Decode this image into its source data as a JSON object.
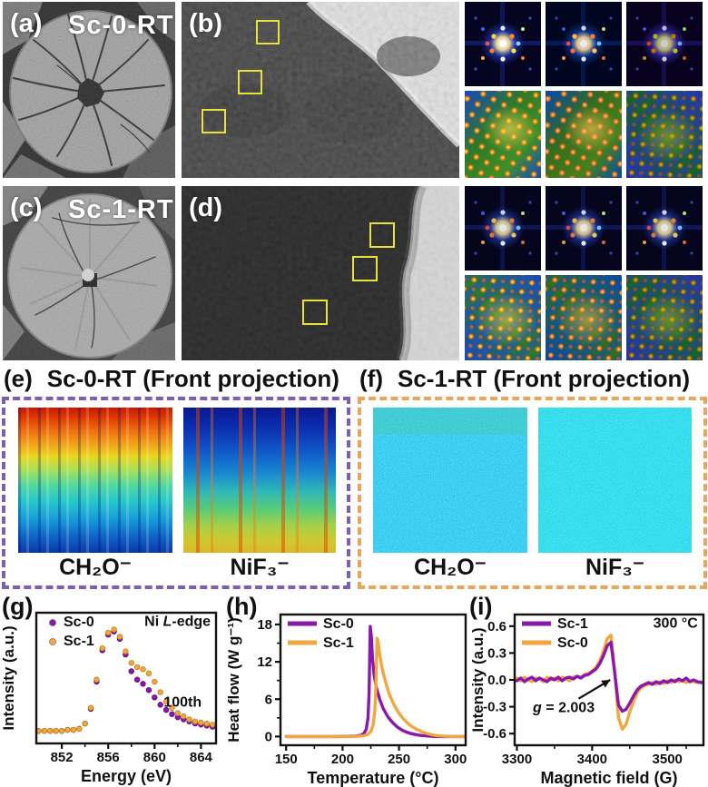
{
  "figure": {
    "a": {
      "label": "(a)",
      "title": "Sc-0-RT"
    },
    "b": {
      "label": "(b)"
    },
    "c": {
      "label": "(c)",
      "title": "Sc-1-RT"
    },
    "d": {
      "label": "(d)"
    },
    "e": {
      "label": "(e)",
      "title": "Sc-0-RT (Front projection)",
      "captions": [
        "CH₂O⁻",
        "NiF₃⁻"
      ],
      "accent": "#7a5fb5"
    },
    "f": {
      "label": "(f)",
      "title": "Sc-1-RT (Front projection)",
      "captions": [
        "CH₂O⁻",
        "NiF₃⁻"
      ],
      "accent": "#eaa559"
    },
    "g": {
      "label": "(g)"
    },
    "h": {
      "label": "(h)"
    },
    "i": {
      "label": "(i)"
    }
  },
  "colors": {
    "purple": "#8a18ac",
    "orange": "#f4a63e",
    "purple_edge": "#5c0d78",
    "orange_edge": "#c07f1a"
  },
  "chart_data": [
    {
      "id": "g",
      "type": "scatter",
      "xlabel": "Energy (eV)",
      "ylabel": "Intensity (a.u.)",
      "xlim": [
        849.8,
        865.3
      ],
      "ylim": [
        -0.07,
        1.18
      ],
      "xticks": [
        {
          "v": 852,
          "t": "852"
        },
        {
          "v": 856,
          "t": "856"
        },
        {
          "v": 860,
          "t": "860"
        },
        {
          "v": 864,
          "t": "864"
        }
      ],
      "yticks": [],
      "xminor": [
        854,
        858,
        862
      ],
      "yminor": [],
      "grid": false,
      "legend_position": "top-left",
      "legend": [
        {
          "label": "Sc-0",
          "color": "#8a18ac",
          "marker": "dot"
        },
        {
          "label": "Sc-1",
          "color": "#f4a63e",
          "marker": "dot"
        }
      ],
      "annotations": [
        {
          "fx": 0.97,
          "fy": 0.1,
          "anchor": "end",
          "parts": [
            [
              "Ni ",
              false
            ],
            [
              "L",
              true
            ],
            [
              "-edge",
              false
            ]
          ]
        },
        {
          "fx": 0.92,
          "fy": 0.72,
          "anchor": "end",
          "parts": [
            [
              "100th",
              false
            ]
          ]
        }
      ],
      "x": [
        850,
        850.5,
        851,
        851.5,
        852,
        852.5,
        853,
        853.5,
        854,
        854.5,
        855,
        855.5,
        856,
        856.5,
        857,
        857.5,
        858,
        858.5,
        859,
        859.5,
        860,
        860.5,
        861,
        861.5,
        862,
        862.5,
        863,
        863.5,
        864,
        864.5,
        865
      ],
      "series": [
        {
          "name": "Sc-0",
          "color": "#8a18ac",
          "edge": "#5c0d78",
          "values": [
            0.05,
            0.05,
            0.05,
            0.05,
            0.05,
            0.06,
            0.06,
            0.07,
            0.12,
            0.26,
            0.52,
            0.82,
            0.97,
            1.0,
            0.93,
            0.78,
            0.62,
            0.54,
            0.5,
            0.44,
            0.37,
            0.3,
            0.25,
            0.21,
            0.18,
            0.16,
            0.14,
            0.12,
            0.11,
            0.1,
            0.09
          ]
        },
        {
          "name": "Sc-1",
          "color": "#f4a63e",
          "edge": "#c07f1a",
          "values": [
            0.05,
            0.05,
            0.05,
            0.05,
            0.05,
            0.06,
            0.06,
            0.07,
            0.12,
            0.27,
            0.54,
            0.84,
            0.99,
            1.02,
            0.95,
            0.81,
            0.7,
            0.66,
            0.64,
            0.6,
            0.52,
            0.42,
            0.33,
            0.27,
            0.22,
            0.19,
            0.16,
            0.14,
            0.13,
            0.12,
            0.11
          ]
        }
      ]
    },
    {
      "id": "h",
      "type": "line",
      "xlabel": "Temperature (°C)",
      "ylabel": "Heat flow (W g⁻¹)",
      "xlim": [
        145,
        309
      ],
      "ylim": [
        -1.4,
        19.6
      ],
      "xticks": [
        {
          "v": 150,
          "t": "150"
        },
        {
          "v": 200,
          "t": "200"
        },
        {
          "v": 250,
          "t": "250"
        },
        {
          "v": 300,
          "t": "300"
        }
      ],
      "yticks": [
        {
          "v": 0,
          "t": "0"
        },
        {
          "v": 6,
          "t": "6"
        },
        {
          "v": 12,
          "t": "12"
        },
        {
          "v": 18,
          "t": "18"
        }
      ],
      "xminor": [
        175,
        225,
        275
      ],
      "yminor": [
        3,
        9,
        15
      ],
      "grid": false,
      "legend_position": "top-left",
      "legend": [
        {
          "label": "Sc-0",
          "color": "#8a18ac",
          "marker": "line"
        },
        {
          "label": "Sc-1",
          "color": "#f4a63e",
          "marker": "line"
        }
      ],
      "annotations": [],
      "series": [
        {
          "name": "Sc-0",
          "color": "#8a18ac",
          "points": [
            [
              150,
              0
            ],
            [
              195,
              0
            ],
            [
              205,
              0.03
            ],
            [
              212,
              0.08
            ],
            [
              216,
              0.2
            ],
            [
              219,
              0.5
            ],
            [
              221,
              1.2
            ],
            [
              222.5,
              3
            ],
            [
              223.5,
              7
            ],
            [
              224.5,
              17.7
            ],
            [
              225.5,
              16
            ],
            [
              226.5,
              12.5
            ],
            [
              228,
              9.8
            ],
            [
              230,
              7.8
            ],
            [
              233,
              5.9
            ],
            [
              236,
              4.5
            ],
            [
              240,
              3.2
            ],
            [
              244,
              2.3
            ],
            [
              248,
              1.6
            ],
            [
              252,
              1.1
            ],
            [
              256,
              0.75
            ],
            [
              260,
              0.5
            ],
            [
              265,
              0.3
            ],
            [
              270,
              0.16
            ],
            [
              275,
              0.08
            ],
            [
              280,
              0.03
            ],
            [
              288,
              0
            ],
            [
              308,
              0
            ]
          ]
        },
        {
          "name": "Sc-1",
          "color": "#f4a63e",
          "points": [
            [
              150,
              0
            ],
            [
              205,
              0
            ],
            [
              213,
              0.04
            ],
            [
              218,
              0.1
            ],
            [
              222,
              0.3
            ],
            [
              225,
              0.8
            ],
            [
              227,
              1.8
            ],
            [
              228.5,
              4
            ],
            [
              229.5,
              8
            ],
            [
              230.5,
              15.8
            ],
            [
              231.5,
              15.2
            ],
            [
              233,
              13
            ],
            [
              235,
              11
            ],
            [
              238,
              8.8
            ],
            [
              241,
              7
            ],
            [
              245,
              5.3
            ],
            [
              249,
              4
            ],
            [
              253,
              3
            ],
            [
              257,
              2.25
            ],
            [
              261,
              1.65
            ],
            [
              266,
              1.1
            ],
            [
              271,
              0.7
            ],
            [
              276,
              0.42
            ],
            [
              281,
              0.22
            ],
            [
              286,
              0.1
            ],
            [
              292,
              0.03
            ],
            [
              300,
              0
            ],
            [
              308,
              0
            ]
          ]
        }
      ]
    },
    {
      "id": "i",
      "type": "line",
      "xlabel": "Magnetic field (G)",
      "ylabel": "Intensity (a.u.)",
      "xlim": [
        3297,
        3548
      ],
      "ylim": [
        -0.73,
        0.73
      ],
      "xticks": [
        {
          "v": 3300,
          "t": "3300"
        },
        {
          "v": 3400,
          "t": "3400"
        },
        {
          "v": 3500,
          "t": "3500"
        }
      ],
      "yticks": [
        {
          "v": -0.6,
          "t": "-0.6"
        },
        {
          "v": -0.3,
          "t": "-0.3"
        },
        {
          "v": 0,
          "t": "0.0"
        },
        {
          "v": 0.3,
          "t": "0.3"
        },
        {
          "v": 0.6,
          "t": "0.6"
        }
      ],
      "xminor": [
        3350,
        3450,
        3525
      ],
      "yminor": [],
      "grid": false,
      "legend_position": "top-left",
      "legend": [
        {
          "label": "Sc-1",
          "color": "#8a18ac",
          "marker": "line"
        },
        {
          "label": "Sc-0",
          "color": "#f4a63e",
          "marker": "line"
        }
      ],
      "annotations": [
        {
          "fx": 0.97,
          "fy": 0.1,
          "anchor": "end",
          "parts": [
            [
              "300 °C",
              false
            ]
          ]
        },
        {
          "fx": 0.26,
          "fy": 0.745,
          "anchor": "middle",
          "parts": [
            [
              "g",
              true
            ],
            [
              " = 2.003",
              false
            ]
          ]
        }
      ],
      "arrow": {
        "from": [
          3382,
          -0.21
        ],
        "to": [
          3424,
          0.0
        ]
      },
      "x_start": 3300,
      "x_step": 5,
      "series": [
        {
          "name": "Sc-0",
          "color": "#f4a63e",
          "values": [
            0.02,
            -0.01,
            0.03,
            0.0,
            -0.02,
            0.02,
            0.01,
            -0.02,
            0.03,
            0.0,
            0.02,
            -0.01,
            0.03,
            0.01,
            -0.01,
            0.03,
            0.04,
            0.03,
            0.06,
            0.07,
            0.1,
            0.14,
            0.21,
            0.32,
            0.46,
            0.5,
            0.1,
            -0.42,
            -0.55,
            -0.5,
            -0.36,
            -0.24,
            -0.14,
            -0.09,
            -0.06,
            -0.05,
            -0.03,
            -0.05,
            -0.02,
            -0.04,
            -0.01,
            -0.03,
            0.0,
            -0.02,
            -0.01,
            -0.03,
            -0.01,
            -0.02,
            -0.03,
            -0.02
          ]
        },
        {
          "name": "Sc-1",
          "color": "#8a18ac",
          "values": [
            -0.01,
            0.02,
            -0.02,
            0.01,
            0.03,
            -0.01,
            0.02,
            0.0,
            -0.02,
            0.02,
            0.0,
            0.03,
            -0.01,
            0.02,
            0.03,
            0.01,
            0.04,
            0.02,
            0.05,
            0.06,
            0.09,
            0.12,
            0.18,
            0.27,
            0.38,
            0.42,
            0.08,
            -0.28,
            -0.35,
            -0.33,
            -0.26,
            -0.18,
            -0.11,
            -0.07,
            -0.05,
            -0.03,
            -0.05,
            -0.02,
            -0.04,
            -0.01,
            -0.03,
            0.0,
            -0.02,
            0.01,
            -0.01,
            0.02,
            -0.02,
            0.0,
            -0.02,
            -0.03
          ]
        }
      ]
    }
  ]
}
